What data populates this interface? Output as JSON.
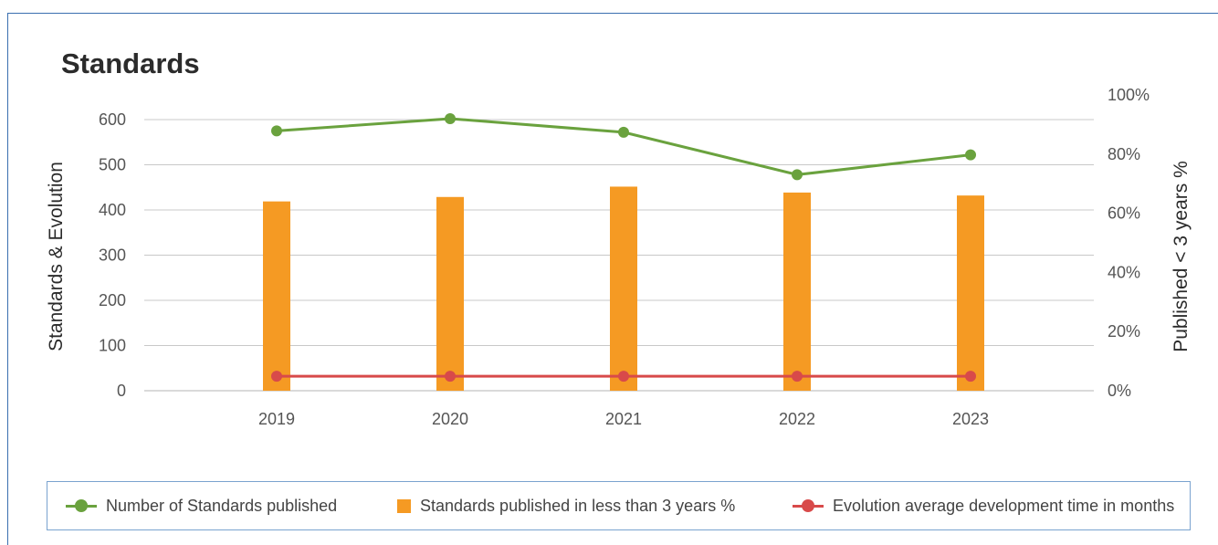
{
  "title": "Standards",
  "legend": {
    "item1": "Number of Standards published",
    "item2": "Standards published in less than 3 years %",
    "item3": "Evolution average development time in months"
  },
  "colors": {
    "green": "#6aa23e",
    "orange": "#f59a23",
    "red": "#d84a4a",
    "grid": "#c8c8c8",
    "border": "#3a6fb0"
  },
  "chart_data": {
    "type": "bar",
    "categories": [
      "2019",
      "2020",
      "2021",
      "2022",
      "2023"
    ],
    "left_axis": {
      "label": "Standards & Evolution",
      "ylim": [
        0,
        600
      ],
      "ticks": [
        "0",
        "100",
        "200",
        "300",
        "400",
        "500",
        "600"
      ]
    },
    "right_axis": {
      "label": "Published < 3 years %",
      "ylim": [
        0,
        100
      ],
      "ticks": [
        "0%",
        "20%",
        "40%",
        "60%",
        "80%",
        "100%"
      ]
    },
    "grid": true,
    "legend_position": "bottom",
    "series": [
      {
        "name": "Number of Standards published",
        "type": "line",
        "axis": "left",
        "values": [
          575,
          602,
          572,
          478,
          522
        ]
      },
      {
        "name": "Standards published in less than 3 years %",
        "type": "bar",
        "axis": "right",
        "values": [
          64,
          65.5,
          69,
          67,
          66
        ]
      },
      {
        "name": "Evolution average development time in months",
        "type": "line",
        "axis": "left",
        "values": [
          32,
          32,
          32,
          32,
          32
        ]
      }
    ]
  }
}
